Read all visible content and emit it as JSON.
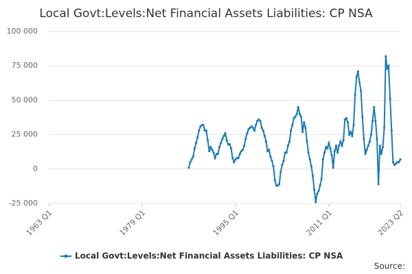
{
  "chart_data": {
    "type": "line",
    "title": "Local Govt:Levels:Net Financial Assets Liabilities: CP NSA",
    "source": "Source:",
    "xlim": [
      "1963 Q1",
      "2023 Q2"
    ],
    "xticks": [
      "1963 Q1",
      "1979 Q1",
      "1995 Q1",
      "2011 Q1",
      "2023 Q2"
    ],
    "ylim": [
      -25000,
      100000
    ],
    "yticks": [
      {
        "value": 100000,
        "label": "100 000"
      },
      {
        "value": 75000,
        "label": "75 000"
      },
      {
        "value": 50000,
        "label": "50 000"
      },
      {
        "value": 25000,
        "label": "25 000"
      },
      0,
      {
        "value": -25000,
        "label": "-25 000"
      }
    ],
    "grid": true,
    "legend": "bottom",
    "x": [
      "1987 Q1",
      "1987 Q2",
      "1987 Q3",
      "1987 Q4",
      "1988 Q1",
      "1988 Q2",
      "1988 Q3",
      "1988 Q4",
      "1989 Q1",
      "1989 Q2",
      "1989 Q3",
      "1989 Q4",
      "1990 Q1",
      "1990 Q2",
      "1990 Q3",
      "1990 Q4",
      "1991 Q1",
      "1991 Q2",
      "1991 Q3",
      "1991 Q4",
      "1992 Q1",
      "1992 Q2",
      "1992 Q3",
      "1992 Q4",
      "1993 Q1",
      "1993 Q2",
      "1993 Q3",
      "1993 Q4",
      "1994 Q1",
      "1994 Q2",
      "1994 Q3",
      "1994 Q4",
      "1995 Q1",
      "1995 Q2",
      "1995 Q3",
      "1995 Q4",
      "1996 Q1",
      "1996 Q2",
      "1996 Q3",
      "1996 Q4",
      "1997 Q1",
      "1997 Q2",
      "1997 Q3",
      "1997 Q4",
      "1998 Q1",
      "1998 Q2",
      "1998 Q3",
      "1998 Q4",
      "1999 Q1",
      "1999 Q2",
      "1999 Q3",
      "1999 Q4",
      "2000 Q1",
      "2000 Q2",
      "2000 Q3",
      "2000 Q4",
      "2001 Q1",
      "2001 Q2",
      "2001 Q3",
      "2001 Q4",
      "2002 Q1",
      "2002 Q2",
      "2002 Q3",
      "2002 Q4",
      "2003 Q1",
      "2003 Q2",
      "2003 Q3",
      "2003 Q4",
      "2004 Q1",
      "2004 Q2",
      "2004 Q3",
      "2004 Q4",
      "2005 Q1",
      "2005 Q2",
      "2005 Q3",
      "2005 Q4",
      "2006 Q1",
      "2006 Q2",
      "2006 Q3",
      "2006 Q4",
      "2007 Q1",
      "2007 Q2",
      "2007 Q3",
      "2007 Q4",
      "2008 Q1",
      "2008 Q2",
      "2008 Q3",
      "2008 Q4",
      "2009 Q1",
      "2009 Q2",
      "2009 Q3",
      "2009 Q4",
      "2010 Q1",
      "2010 Q2",
      "2010 Q3",
      "2010 Q4",
      "2011 Q1",
      "2011 Q2",
      "2011 Q3",
      "2011 Q4",
      "2012 Q1",
      "2012 Q2",
      "2012 Q3",
      "2012 Q4",
      "2013 Q1",
      "2013 Q2",
      "2013 Q3",
      "2013 Q4",
      "2014 Q1",
      "2014 Q2",
      "2014 Q3",
      "2014 Q4",
      "2015 Q1",
      "2015 Q2",
      "2015 Q3",
      "2015 Q4",
      "2016 Q1",
      "2016 Q2",
      "2016 Q3",
      "2016 Q4",
      "2017 Q1",
      "2017 Q2",
      "2017 Q3",
      "2017 Q4",
      "2018 Q1",
      "2018 Q2",
      "2018 Q3",
      "2018 Q4",
      "2019 Q1",
      "2019 Q2",
      "2019 Q3",
      "2019 Q4",
      "2020 Q1",
      "2020 Q2",
      "2020 Q3",
      "2020 Q4",
      "2021 Q1",
      "2021 Q2",
      "2021 Q3",
      "2021 Q4",
      "2022 Q1",
      "2022 Q2",
      "2022 Q3",
      "2022 Q4",
      "2023 Q1",
      "2023 Q2"
    ],
    "series": [
      {
        "name": "Local Govt:Levels:Net Financial Assets Liabilities: CP NSA",
        "color": "#1a7ab5",
        "values": [
          1000,
          5000,
          7000,
          9000,
          15000,
          19000,
          23000,
          28000,
          31000,
          32000,
          32000,
          28000,
          28000,
          21000,
          13000,
          16000,
          14000,
          12000,
          8000,
          11000,
          11000,
          16000,
          19000,
          22000,
          24000,
          26000,
          21000,
          18000,
          18000,
          15000,
          8000,
          5000,
          7000,
          8000,
          8000,
          11000,
          13000,
          14000,
          17000,
          22000,
          26000,
          29000,
          30000,
          31000,
          30000,
          28000,
          32000,
          35000,
          36000,
          35000,
          30000,
          28000,
          24000,
          20000,
          13000,
          14000,
          9000,
          6000,
          2000,
          -8000,
          -12000,
          -12000,
          -11000,
          -2000,
          3000,
          6000,
          12000,
          12000,
          17000,
          20000,
          28000,
          32000,
          37000,
          38000,
          40000,
          45000,
          40000,
          38000,
          27000,
          34000,
          30000,
          20000,
          12000,
          7000,
          2000,
          -5000,
          -15000,
          -24000,
          -18000,
          -16000,
          -12000,
          -7000,
          7000,
          12000,
          16000,
          15000,
          19000,
          15000,
          10000,
          1000,
          13000,
          17000,
          12000,
          17000,
          20000,
          17000,
          21000,
          36000,
          37000,
          34000,
          25000,
          27000,
          24000,
          32000,
          54000,
          67000,
          71000,
          63000,
          57000,
          38000,
          22000,
          11000,
          14000,
          17000,
          20000,
          25000,
          35000,
          45000,
          35000,
          22000,
          -11000,
          17000,
          11000,
          16000,
          30000,
          82000,
          73000,
          75000,
          51000,
          28000,
          5000,
          3000,
          4000,
          5000,
          5000,
          7000
        ]
      }
    ]
  }
}
